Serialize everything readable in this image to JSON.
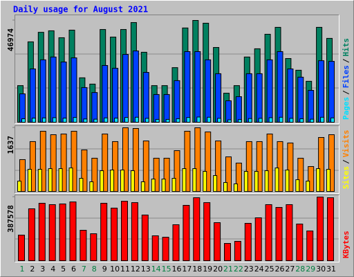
{
  "chart_data": [
    {
      "type": "bar",
      "title": "Daily usage for August 2021",
      "legend_separator": "/",
      "ylim": [
        0,
        46974
      ],
      "yticks": [
        46974
      ],
      "series": [
        {
          "name": "Hits",
          "color": "#008060",
          "values": [
            16900,
            37100,
            41500,
            42200,
            39000,
            42500,
            20500,
            17600,
            42800,
            39300,
            42800,
            46000,
            32300,
            16900,
            16900,
            25200,
            43500,
            46974,
            45700,
            34500,
            13400,
            16900,
            30100,
            33900,
            40600,
            43800,
            29400,
            24000,
            18900,
            43800,
            38700
          ]
        },
        {
          "name": "Files",
          "color": "#0040ff",
          "values": [
            13100,
            24600,
            28800,
            30100,
            27800,
            29700,
            16000,
            13700,
            26200,
            24900,
            31300,
            32900,
            23000,
            12800,
            12800,
            19200,
            32600,
            32600,
            28800,
            22400,
            9900,
            11800,
            22400,
            22400,
            28800,
            32600,
            24600,
            20800,
            14700,
            28400,
            28100
          ]
        },
        {
          "name": "Pages",
          "color": "#00e0ff",
          "values": [
            1600,
            1900,
            2000,
            2100,
            1900,
            2200,
            1500,
            1400,
            2000,
            1900,
            2200,
            2300,
            1800,
            1300,
            1300,
            1600,
            2200,
            2400,
            2300,
            1800,
            1100,
            1200,
            1700,
            1800,
            2100,
            2300,
            1800,
            1600,
            1400,
            2300,
            2000
          ]
        }
      ]
    },
    {
      "type": "bar",
      "legend_separator": "/",
      "ylim": [
        0,
        1637
      ],
      "yticks": [
        1637
      ],
      "series": [
        {
          "name": "Visits",
          "color": "#ff8000",
          "values": [
            819,
            1282,
            1548,
            1459,
            1477,
            1548,
            1068,
            855,
            1477,
            1282,
            1637,
            1619,
            1299,
            855,
            855,
            1050,
            1548,
            1637,
            1530,
            1299,
            890,
            730,
            1282,
            1282,
            1477,
            1282,
            1246,
            855,
            641,
            1388,
            1459
          ]
        },
        {
          "name": "Sites",
          "color": "#ffff00",
          "values": [
            267,
            570,
            570,
            587,
            587,
            605,
            338,
            249,
            534,
            552,
            552,
            534,
            249,
            320,
            320,
            338,
            587,
            587,
            516,
            409,
            231,
            196,
            516,
            516,
            534,
            605,
            552,
            302,
            267,
            587,
            570
          ]
        }
      ]
    },
    {
      "type": "bar",
      "ylim": [
        0,
        387578
      ],
      "yticks": [
        387578
      ],
      "categories": [
        "1",
        "2",
        "3",
        "4",
        "5",
        "6",
        "7",
        "8",
        "9",
        "10",
        "11",
        "12",
        "13",
        "14",
        "15",
        "16",
        "17",
        "18",
        "19",
        "20",
        "21",
        "22",
        "23",
        "24",
        "25",
        "26",
        "27",
        "28",
        "29",
        "30",
        "31"
      ],
      "category_colors": [
        "#008040",
        "#000000",
        "#000000",
        "#000000",
        "#000000",
        "#000000",
        "#008040",
        "#008040",
        "#000000",
        "#000000",
        "#000000",
        "#000000",
        "#000000",
        "#008040",
        "#008040",
        "#000000",
        "#000000",
        "#000000",
        "#000000",
        "#000000",
        "#008040",
        "#008040",
        "#000000",
        "#000000",
        "#000000",
        "#000000",
        "#000000",
        "#008040",
        "#008040",
        "#000000",
        "#000000"
      ],
      "series": [
        {
          "name": "KBytes",
          "color": "#ff0000",
          "values": [
            155900,
            316000,
            349700,
            341300,
            345500,
            357800,
            185400,
            164300,
            349700,
            320200,
            362000,
            353600,
            278100,
            151700,
            143200,
            219100,
            337000,
            383400,
            353600,
            231700,
            105300,
            118000,
            227500,
            261200,
            341300,
            324400,
            341300,
            223300,
            181200,
            387578,
            383400
          ]
        }
      ]
    }
  ]
}
